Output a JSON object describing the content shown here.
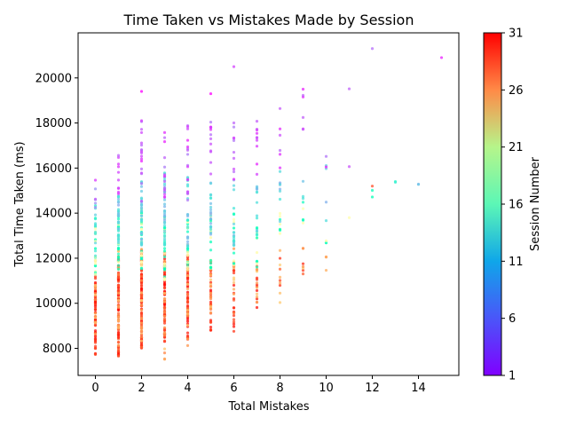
{
  "chart_data": {
    "type": "scatter",
    "title": "Time Taken vs Mistakes Made by Session",
    "xlabel": "Total Mistakes",
    "ylabel": "Total Time Taken (ms)",
    "colorbar_label": "Session Number",
    "xlim": [
      -0.75,
      15.75
    ],
    "ylim": [
      6800,
      22000
    ],
    "xticks": [
      0,
      2,
      4,
      6,
      8,
      10,
      12,
      14
    ],
    "yticks": [
      8000,
      10000,
      12000,
      14000,
      16000,
      18000,
      20000
    ],
    "colorbar_range": [
      1,
      31
    ],
    "colorbar_ticks": [
      1,
      6,
      11,
      16,
      21,
      26,
      31
    ],
    "colormap": "rainbow",
    "grid": false,
    "points_by_mistakes": [
      {
        "x": 0,
        "groups": [
          {
            "session": 29,
            "n": 60,
            "ymin": 7700,
            "ymax": 11200
          },
          {
            "session": 24,
            "n": 15,
            "ymin": 8200,
            "ymax": 12000
          },
          {
            "session": 16,
            "n": 20,
            "ymin": 11000,
            "ymax": 14000
          },
          {
            "session": 12,
            "n": 12,
            "ymin": 12000,
            "ymax": 14500
          },
          {
            "session": 5,
            "n": 6,
            "ymin": 14000,
            "ymax": 15500
          }
        ]
      },
      {
        "x": 1,
        "groups": [
          {
            "session": 29,
            "n": 90,
            "ymin": 7600,
            "ymax": 12000
          },
          {
            "session": 24,
            "n": 20,
            "ymin": 7400,
            "ymax": 12500
          },
          {
            "session": 16,
            "n": 30,
            "ymin": 11500,
            "ymax": 14000
          },
          {
            "session": 10,
            "n": 25,
            "ymin": 12500,
            "ymax": 15000
          },
          {
            "session": 4,
            "n": 10,
            "ymin": 14500,
            "ymax": 16700
          }
        ]
      },
      {
        "x": 2,
        "groups": [
          {
            "session": 29,
            "n": 110,
            "ymin": 8000,
            "ymax": 12400
          },
          {
            "session": 24,
            "n": 20,
            "ymin": 8000,
            "ymax": 12500
          },
          {
            "session": 16,
            "n": 40,
            "ymin": 11500,
            "ymax": 14200
          },
          {
            "session": 10,
            "n": 30,
            "ymin": 12500,
            "ymax": 15500
          },
          {
            "session": 4,
            "n": 18,
            "ymin": 14500,
            "ymax": 18400
          },
          {
            "session": 2,
            "n": 1,
            "ymin": 19400,
            "ymax": 19400
          }
        ]
      },
      {
        "x": 3,
        "groups": [
          {
            "session": 29,
            "n": 80,
            "ymin": 8300,
            "ymax": 12400
          },
          {
            "session": 24,
            "n": 15,
            "ymin": 7500,
            "ymax": 12000
          },
          {
            "session": 16,
            "n": 35,
            "ymin": 11000,
            "ymax": 14000
          },
          {
            "session": 10,
            "n": 30,
            "ymin": 12500,
            "ymax": 15800
          },
          {
            "session": 4,
            "n": 15,
            "ymin": 14500,
            "ymax": 17700
          }
        ]
      },
      {
        "x": 4,
        "groups": [
          {
            "session": 29,
            "n": 60,
            "ymin": 8400,
            "ymax": 12500
          },
          {
            "session": 24,
            "n": 15,
            "ymin": 8100,
            "ymax": 12200
          },
          {
            "session": 16,
            "n": 25,
            "ymin": 11500,
            "ymax": 14000
          },
          {
            "session": 10,
            "n": 20,
            "ymin": 12500,
            "ymax": 15600
          },
          {
            "session": 4,
            "n": 15,
            "ymin": 14500,
            "ymax": 18000
          }
        ]
      },
      {
        "x": 5,
        "groups": [
          {
            "session": 29,
            "n": 30,
            "ymin": 8800,
            "ymax": 12000
          },
          {
            "session": 24,
            "n": 15,
            "ymin": 9500,
            "ymax": 12000
          },
          {
            "session": 16,
            "n": 20,
            "ymin": 11500,
            "ymax": 14000
          },
          {
            "session": 10,
            "n": 20,
            "ymin": 12500,
            "ymax": 15500
          },
          {
            "session": 4,
            "n": 12,
            "ymin": 15500,
            "ymax": 18200
          },
          {
            "session": 2,
            "n": 1,
            "ymin": 19300,
            "ymax": 19300
          }
        ]
      },
      {
        "x": 6,
        "groups": [
          {
            "session": 29,
            "n": 20,
            "ymin": 8700,
            "ymax": 12000
          },
          {
            "session": 24,
            "n": 10,
            "ymin": 9500,
            "ymax": 12500
          },
          {
            "session": 16,
            "n": 15,
            "ymin": 11500,
            "ymax": 14000
          },
          {
            "session": 10,
            "n": 15,
            "ymin": 12500,
            "ymax": 15500
          },
          {
            "session": 4,
            "n": 10,
            "ymin": 15500,
            "ymax": 18300
          },
          {
            "session": 2,
            "n": 1,
            "ymin": 20500,
            "ymax": 20500
          }
        ]
      },
      {
        "x": 7,
        "groups": [
          {
            "session": 29,
            "n": 8,
            "ymin": 9200,
            "ymax": 12000
          },
          {
            "session": 24,
            "n": 10,
            "ymin": 9800,
            "ymax": 12500
          },
          {
            "session": 16,
            "n": 12,
            "ymin": 11500,
            "ymax": 14500
          },
          {
            "session": 10,
            "n": 12,
            "ymin": 13000,
            "ymax": 15500
          },
          {
            "session": 4,
            "n": 10,
            "ymin": 15500,
            "ymax": 18100
          }
        ]
      },
      {
        "x": 8,
        "groups": [
          {
            "session": 29,
            "n": 4,
            "ymin": 10000,
            "ymax": 12000
          },
          {
            "session": 24,
            "n": 6,
            "ymin": 10000,
            "ymax": 12500
          },
          {
            "session": 16,
            "n": 8,
            "ymin": 12000,
            "ymax": 14000
          },
          {
            "session": 10,
            "n": 8,
            "ymin": 13000,
            "ymax": 16000
          },
          {
            "session": 4,
            "n": 6,
            "ymin": 16000,
            "ymax": 18700
          }
        ]
      },
      {
        "x": 9,
        "groups": [
          {
            "session": 29,
            "n": 3,
            "ymin": 11300,
            "ymax": 11800
          },
          {
            "session": 24,
            "n": 4,
            "ymin": 11000,
            "ymax": 12500
          },
          {
            "session": 16,
            "n": 5,
            "ymin": 13500,
            "ymax": 14500
          },
          {
            "session": 10,
            "n": 3,
            "ymin": 14500,
            "ymax": 15500
          },
          {
            "session": 4,
            "n": 6,
            "ymin": 17500,
            "ymax": 19500
          }
        ]
      },
      {
        "x": 10,
        "groups": [
          {
            "session": 24,
            "n": 3,
            "ymin": 11300,
            "ymax": 12100
          },
          {
            "session": 16,
            "n": 3,
            "ymin": 12000,
            "ymax": 13100
          },
          {
            "session": 10,
            "n": 4,
            "ymin": 13500,
            "ymax": 16500
          },
          {
            "session": 4,
            "n": 2,
            "ymin": 15700,
            "ymax": 18000
          }
        ]
      },
      {
        "x": 11,
        "groups": [
          {
            "session": 16,
            "n": 1,
            "ymin": 13800,
            "ymax": 13800
          },
          {
            "session": 3,
            "n": 2,
            "ymin": 16000,
            "ymax": 20400
          }
        ]
      },
      {
        "x": 12,
        "groups": [
          {
            "session": 27,
            "n": 1,
            "ymin": 15200,
            "ymax": 15200
          },
          {
            "session": 14,
            "n": 2,
            "ymin": 13400,
            "ymax": 16400
          },
          {
            "session": 6,
            "n": 1,
            "ymin": 21300,
            "ymax": 21300
          }
        ]
      },
      {
        "x": 13,
        "groups": [
          {
            "session": 12,
            "n": 2,
            "ymin": 15300,
            "ymax": 15800
          }
        ]
      },
      {
        "x": 14,
        "groups": [
          {
            "session": 8,
            "n": 2,
            "ymin": 15200,
            "ymax": 15600
          }
        ]
      },
      {
        "x": 15,
        "groups": [
          {
            "session": 2,
            "n": 1,
            "ymin": 20900,
            "ymax": 20900
          }
        ]
      }
    ]
  }
}
